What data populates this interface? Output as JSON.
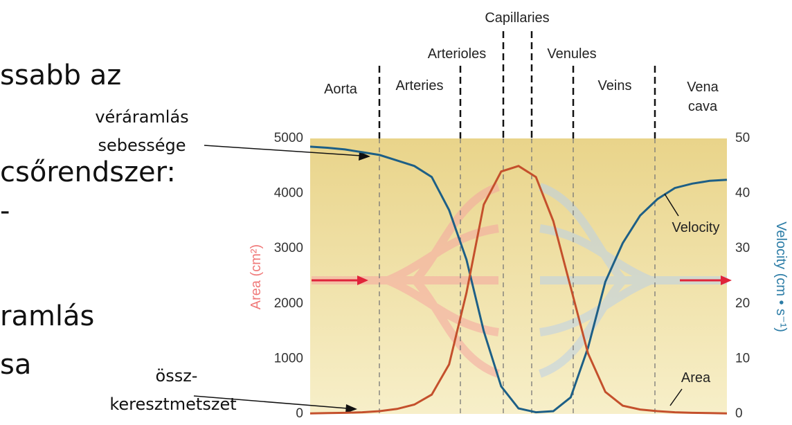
{
  "slide_text": [
    "ssabb az",
    "csőrendszer:",
    "-",
    "ramlás",
    "sa"
  ],
  "annotations": {
    "velocity": [
      "véráramlás",
      "sebessége"
    ],
    "area": [
      "össz-",
      "keresztmetszet"
    ]
  },
  "chart_data": {
    "type": "line",
    "sections": [
      "Aorta",
      "Arteries",
      "Arterioles",
      "Capillaries",
      "Venules",
      "Veins",
      "Vena cava"
    ],
    "ylabel": "Area (cm²)",
    "y2label": "Velocity (cm • s⁻¹)",
    "categories": [
      null,
      null,
      null,
      null,
      null,
      null,
      null,
      null,
      null,
      null,
      null,
      null,
      null,
      null,
      null,
      null,
      null,
      null,
      null,
      null,
      null,
      null,
      null,
      null,
      null
    ],
    "series": [
      {
        "name": "Velocity",
        "color": "#1d5f86",
        "axis": "y2",
        "values": [
          48.5,
          48.3,
          48,
          47.5,
          47,
          46,
          45,
          43,
          37,
          28,
          15,
          5,
          1,
          0.3,
          0.5,
          3,
          12,
          24,
          31,
          36,
          39,
          41,
          41.8,
          42.3,
          42.5
        ]
      },
      {
        "name": "Area",
        "color": "#c4502c",
        "values": [
          10,
          15,
          20,
          30,
          50,
          90,
          170,
          350,
          900,
          2200,
          3800,
          4400,
          4500,
          4300,
          3500,
          2300,
          1100,
          400,
          150,
          80,
          50,
          30,
          20,
          15,
          10
        ]
      }
    ],
    "ylim": [
      0,
      5000
    ],
    "yticks": [
      0,
      1000,
      2000,
      3000,
      4000,
      5000
    ],
    "y2lim": [
      0,
      50
    ],
    "y2ticks": [
      0,
      10,
      20,
      30,
      40,
      50
    ]
  }
}
